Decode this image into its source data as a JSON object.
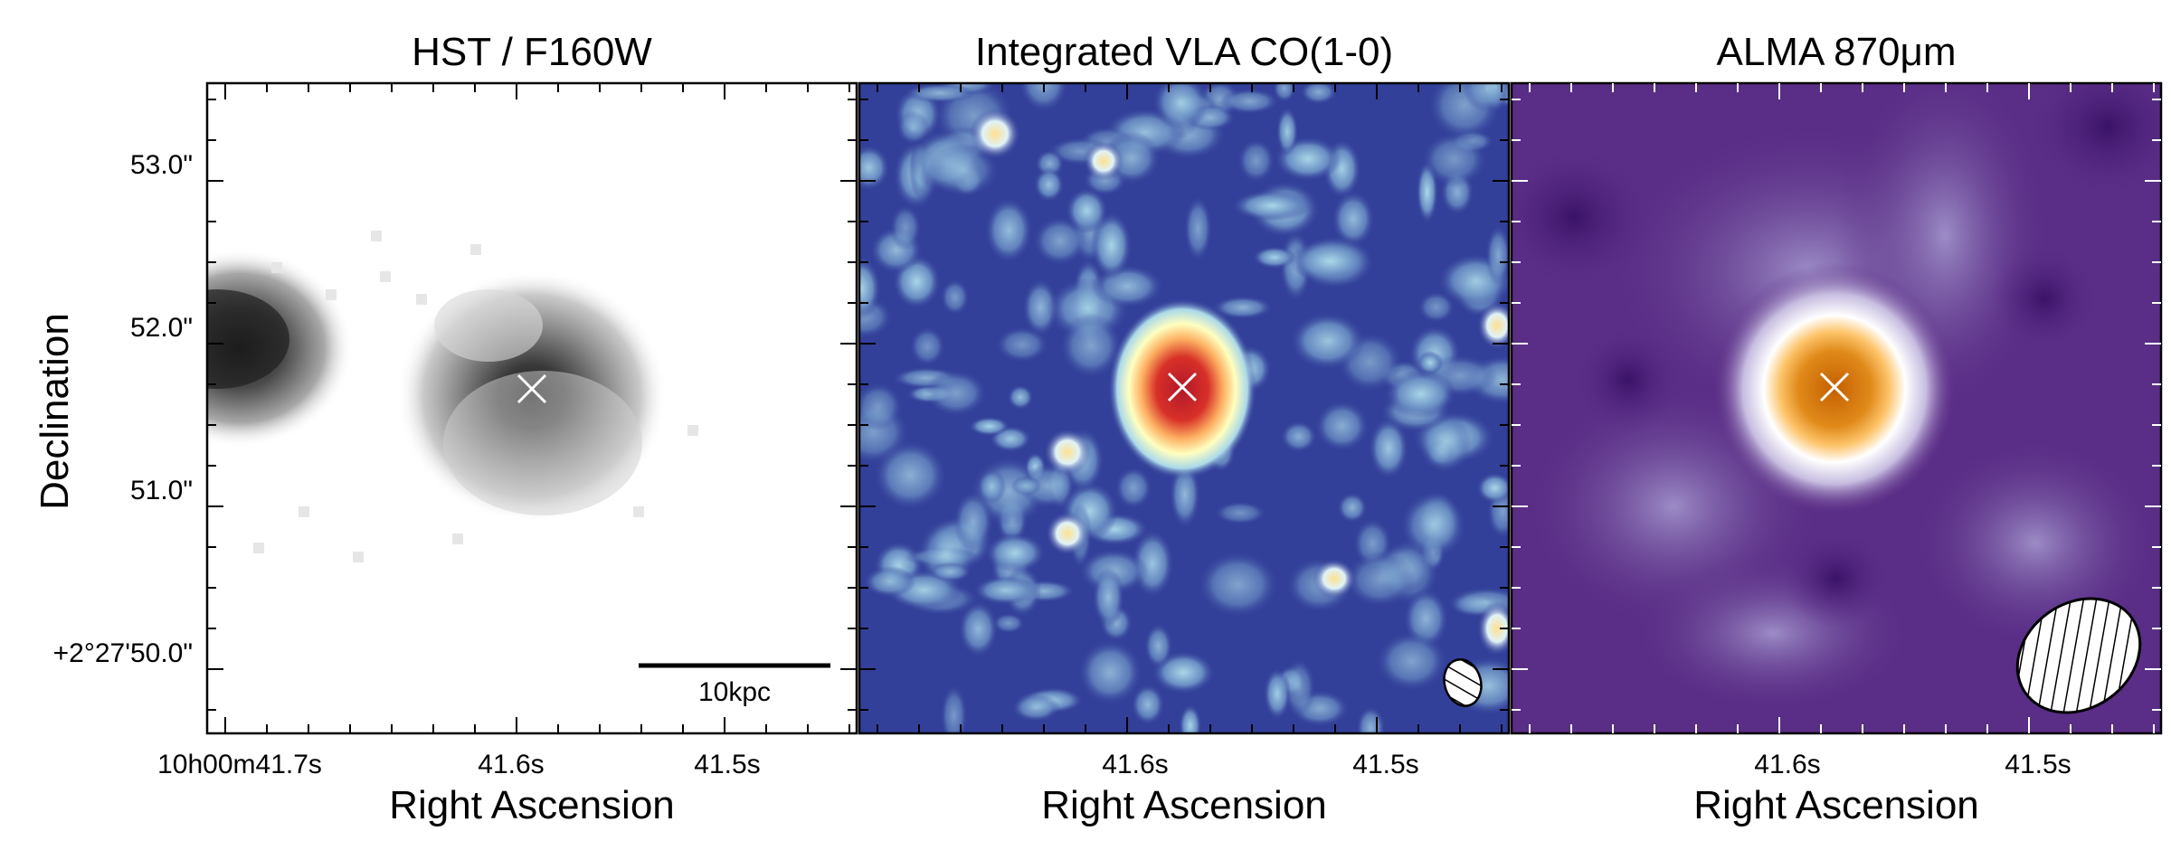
{
  "figure": {
    "panels": [
      {
        "id": "hst",
        "title": "HST / F160W",
        "colormap": "greys",
        "xlabel": "Right Ascension",
        "ra_ticks": [
          "10h00m41.7s",
          "41.6s",
          "41.5s"
        ],
        "source_marker": "cross-icon",
        "scale_bar_label": "10kpc"
      },
      {
        "id": "vla",
        "title": "Integrated VLA CO(1-0)",
        "colormap": "rdylbu-reversed",
        "xlabel": "Right Ascension",
        "ra_ticks": [
          "41.6s",
          "41.5s"
        ],
        "source_marker": "cross-icon",
        "beam": "hatched-ellipse-icon"
      },
      {
        "id": "alma",
        "title": "ALMA 870μm",
        "colormap": "purple-orange",
        "xlabel": "Right Ascension",
        "ra_ticks": [
          "41.6s",
          "41.5s"
        ],
        "source_marker": "cross-icon",
        "beam": "hatched-ellipse-icon"
      }
    ],
    "ylabel": "Declination",
    "dec_ticks": [
      "53.0\"",
      "52.0\"",
      "51.0\"",
      "+2°27'50.0\""
    ],
    "colors": {
      "frame": "#000000",
      "marker": "#ffffff",
      "vla_background": "#33409a",
      "alma_background": "#5a2d86"
    }
  }
}
